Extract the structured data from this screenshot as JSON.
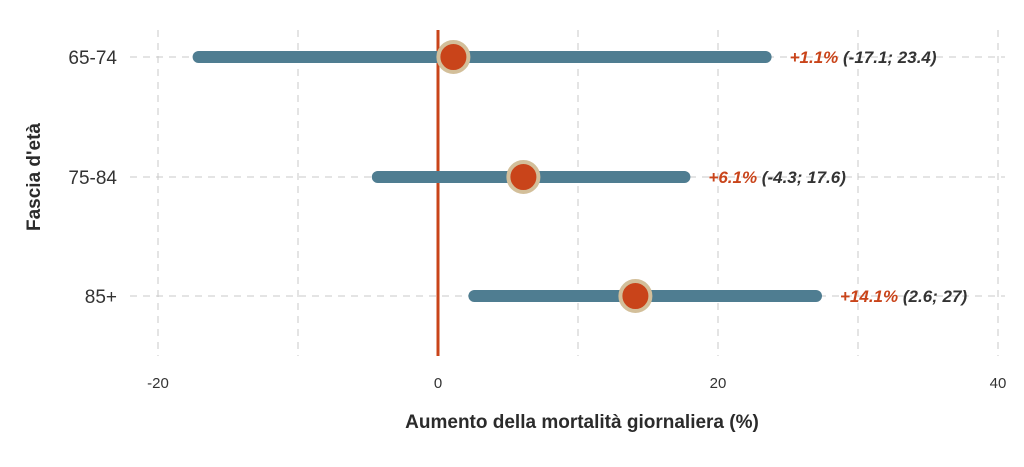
{
  "chart_data": {
    "type": "forest",
    "xlabel": "Aumento della mortalità giornaliera (%)",
    "ylabel": "Fascia d'età",
    "xlim": [
      -21,
      40
    ],
    "xticks": [
      -20,
      0,
      20,
      40
    ],
    "x_minor_gridlines": [
      -10,
      10,
      30
    ],
    "reference_line": 0,
    "grid": true,
    "categories": [
      "65-74",
      "75-84",
      "85+"
    ],
    "points": [
      {
        "category": "65-74",
        "estimate": 1.1,
        "low": -17.1,
        "high": 23.4,
        "estimate_label": "+1.1%",
        "interval_label": "(-17.1; 23.4)"
      },
      {
        "category": "75-84",
        "estimate": 6.1,
        "low": -4.3,
        "high": 17.6,
        "estimate_label": "+6.1%",
        "interval_label": "(-4.3; 17.6)"
      },
      {
        "category": "85+",
        "estimate": 14.1,
        "low": 2.6,
        "high": 27,
        "estimate_label": "+14.1%",
        "interval_label": "(2.6; 27)"
      }
    ]
  },
  "colors": {
    "interval": "#4f7d91",
    "point": "#c9441a",
    "point_ring": "#d3bf9a",
    "reference": "#c9441a",
    "estimate_text": "#c9441a",
    "interval_text": "#333333",
    "grid": "#c8c8c8"
  }
}
